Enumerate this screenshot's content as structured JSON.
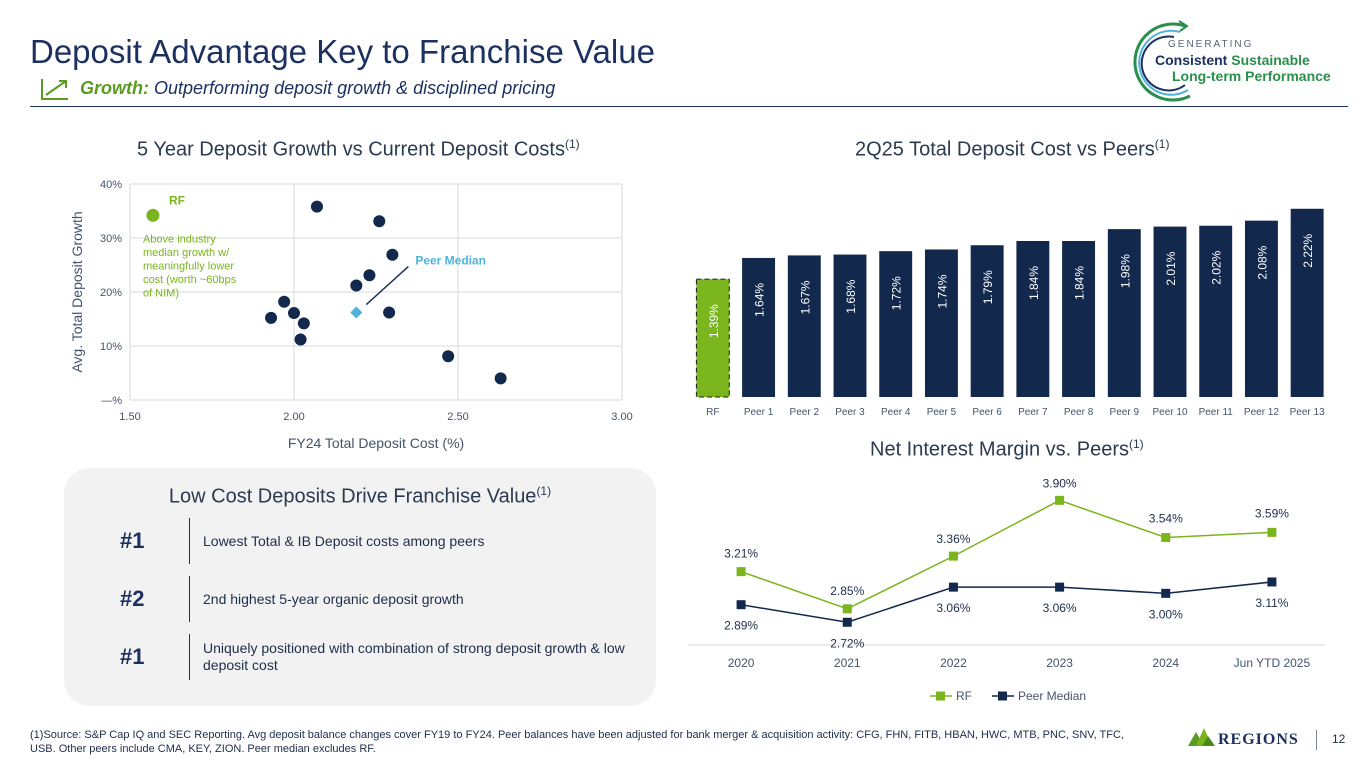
{
  "header": {
    "title": "Deposit Advantage Key to Franchise Value",
    "subtitle_lead": "Growth:",
    "subtitle_rest": "Outperforming deposit growth & disciplined pricing",
    "brand_line0": "GENERATING",
    "brand_line1a": "Consistent",
    "brand_line1b": "Sustainable",
    "brand_line2": "Long-term Performance"
  },
  "chart_data": [
    {
      "type": "scatter",
      "title": "5 Year Deposit Growth vs Current Deposit Costs",
      "title_note": "(1)",
      "xlabel": "FY24 Total Deposit Cost (%)",
      "ylabel": "Avg. Total Deposit Growth",
      "xlim": [
        1.5,
        3.0
      ],
      "ylim": [
        0,
        40
      ],
      "x_ticks": [
        "1.50",
        "2.00",
        "2.50",
        "3.00"
      ],
      "y_ticks": [
        "—%",
        "10%",
        "20%",
        "30%",
        "40%"
      ],
      "grid": true,
      "rf_point": {
        "label": "RF",
        "x": 1.57,
        "y": 34.2,
        "color": "#7ab51d"
      },
      "peer_median": {
        "label": "Peer Median",
        "x": 2.19,
        "y": 16.2,
        "color": "#4fb3d9"
      },
      "peer_points": [
        {
          "x": 1.93,
          "y": 15.2
        },
        {
          "x": 1.97,
          "y": 18.2
        },
        {
          "x": 2.0,
          "y": 16.1
        },
        {
          "x": 2.03,
          "y": 14.2
        },
        {
          "x": 2.02,
          "y": 11.2
        },
        {
          "x": 2.07,
          "y": 35.8
        },
        {
          "x": 2.19,
          "y": 21.2
        },
        {
          "x": 2.23,
          "y": 23.1
        },
        {
          "x": 2.26,
          "y": 33.1
        },
        {
          "x": 2.29,
          "y": 16.2
        },
        {
          "x": 2.3,
          "y": 26.9
        },
        {
          "x": 2.47,
          "y": 8.1
        },
        {
          "x": 2.63,
          "y": 4.0
        }
      ],
      "annotation": "Above industry median growth w/ meaningfully lower cost (worth ~60bps of NIM)"
    },
    {
      "type": "bar",
      "title": "2Q25 Total Deposit Cost vs Peers",
      "title_note": "(1)",
      "categories": [
        "RF",
        "Peer 1",
        "Peer 2",
        "Peer 3",
        "Peer 4",
        "Peer 5",
        "Peer 6",
        "Peer 7",
        "Peer 8",
        "Peer 9",
        "Peer 10",
        "Peer 11",
        "Peer 12",
        "Peer 13"
      ],
      "values": [
        1.39,
        1.64,
        1.67,
        1.68,
        1.72,
        1.74,
        1.79,
        1.84,
        1.84,
        1.98,
        2.01,
        2.02,
        2.08,
        2.22
      ],
      "labels": [
        "1.39%",
        "1.64%",
        "1.67%",
        "1.68%",
        "1.72%",
        "1.74%",
        "1.79%",
        "1.84%",
        "1.84%",
        "1.98%",
        "2.01%",
        "2.02%",
        "2.08%",
        "2.22%"
      ],
      "colors": {
        "rf": "#7ab51d",
        "peer": "#12284c"
      }
    },
    {
      "type": "line",
      "title": "Net Interest Margin vs. Peers",
      "title_note": "(1)",
      "categories": [
        "2020",
        "2021",
        "2022",
        "2023",
        "2024",
        "Jun YTD 2025"
      ],
      "series": [
        {
          "name": "RF",
          "values": [
            3.21,
            2.85,
            3.36,
            3.9,
            3.54,
            3.59
          ],
          "labels": [
            "3.21%",
            "2.85%",
            "3.36%",
            "3.90%",
            "3.54%",
            "3.59%"
          ],
          "color": "#7ab51d"
        },
        {
          "name": "Peer Median",
          "values": [
            2.89,
            2.72,
            3.06,
            3.06,
            3.0,
            3.11
          ],
          "labels": [
            "2.89%",
            "2.72%",
            "3.06%",
            "3.06%",
            "3.00%",
            "3.11%"
          ],
          "color": "#12284c"
        }
      ],
      "legend": "bottom"
    }
  ],
  "callout": {
    "title": "Low Cost Deposits Drive Franchise Value",
    "title_note": "(1)",
    "items": [
      {
        "rank": "#1",
        "text": "Lowest Total & IB Deposit costs among peers"
      },
      {
        "rank": "#2",
        "text": "2nd highest 5-year organic deposit growth"
      },
      {
        "rank": "#1",
        "text": "Uniquely positioned with combination of strong deposit growth & low deposit cost"
      }
    ]
  },
  "footer": {
    "footnote": "(1)Source: S&P Cap IQ and SEC Reporting. Avg deposit balance changes cover FY19 to FY24. Peer balances have been adjusted for bank merger & acquisition activity: CFG, FHN, FITB, HBAN, HWC, MTB, PNC, SNV, TFC, USB.  Other peers include CMA, KEY, ZION. Peer median excludes RF.",
    "brand": "REGIONS",
    "page": "12"
  }
}
